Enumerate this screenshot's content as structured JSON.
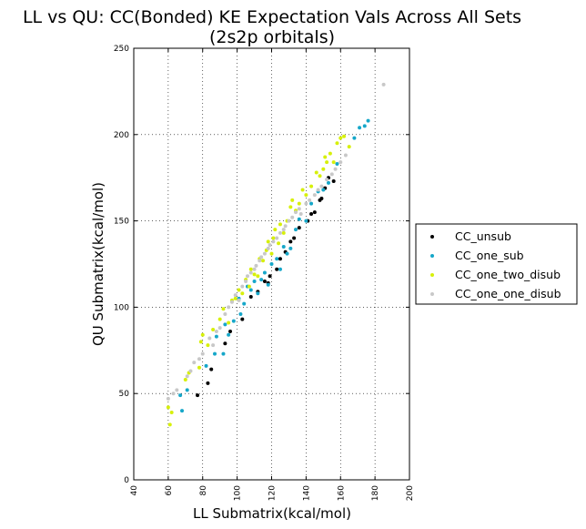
{
  "chart_data": {
    "type": "scatter",
    "title": "LL vs QU: CC(Bonded) KE Expectation Vals Across All Sets",
    "subtitle": "(2s2p orbitals)",
    "xlabel": "LL Submatrix(kcal/mol)",
    "ylabel": "QU Submatrix(kcal/mol)",
    "xlim": [
      40,
      200
    ],
    "ylim": [
      0,
      250
    ],
    "xticks": [
      "40",
      "60",
      "80",
      "100",
      "120",
      "140",
      "160",
      "180",
      "200"
    ],
    "yticks": [
      "0",
      "50",
      "100",
      "150",
      "200",
      "250"
    ],
    "grid": true,
    "legend_position": "right",
    "series": [
      {
        "name": "CC_unsub",
        "color": "#000000",
        "x": [
          77,
          83,
          85,
          93,
          96,
          103,
          108,
          112,
          116,
          118,
          119,
          123,
          125,
          128,
          131,
          133,
          136,
          141,
          143,
          145,
          148,
          149,
          151,
          153,
          156
        ],
        "y": [
          49,
          56,
          64,
          79,
          86,
          93,
          106,
          109,
          115,
          114,
          118,
          122,
          128,
          132,
          138,
          140,
          146,
          150,
          154,
          155,
          162,
          163,
          169,
          175,
          173
        ]
      },
      {
        "name": "CC_one_sub",
        "color": "#16a7c9",
        "x": [
          67,
          68,
          71,
          82,
          87,
          88,
          92,
          93,
          95,
          98,
          101,
          102,
          104,
          106,
          108,
          110,
          112,
          114,
          116,
          118,
          120,
          123,
          125,
          127,
          129,
          131,
          134,
          136,
          140,
          143,
          147,
          150,
          153,
          158,
          168,
          171,
          174,
          176
        ],
        "y": [
          49,
          40,
          52,
          66,
          73,
          83,
          73,
          90,
          84,
          92,
          105,
          96,
          102,
          112,
          110,
          115,
          108,
          116,
          120,
          113,
          125,
          128,
          122,
          135,
          131,
          134,
          145,
          151,
          150,
          160,
          167,
          168,
          172,
          183,
          198,
          204,
          205,
          208
        ]
      },
      {
        "name": "CC_one_two_disub",
        "color": "#d7f00a",
        "x": [
          60,
          61,
          62,
          70,
          72,
          78,
          79,
          80,
          83,
          86,
          90,
          92,
          95,
          97,
          99,
          101,
          103,
          105,
          107,
          108,
          110,
          112,
          113,
          115,
          117,
          118,
          120,
          121,
          122,
          124,
          125,
          127,
          129,
          131,
          132,
          134,
          136,
          138,
          140,
          143,
          146,
          148,
          150,
          151,
          152,
          154,
          156,
          158,
          160,
          162,
          165
        ],
        "y": [
          42,
          32,
          39,
          58,
          62,
          65,
          80,
          84,
          78,
          87,
          93,
          99,
          91,
          104,
          105,
          110,
          108,
          116,
          112,
          122,
          119,
          118,
          128,
          127,
          133,
          138,
          131,
          140,
          145,
          137,
          148,
          143,
          150,
          158,
          162,
          156,
          160,
          168,
          165,
          170,
          178,
          176,
          180,
          187,
          184,
          189,
          184,
          195,
          198,
          199,
          193
        ]
      },
      {
        "name": "CC_one_one_disub",
        "color": "#c8c8c8",
        "x": [
          60,
          63,
          65,
          71,
          73,
          75,
          78,
          80,
          84,
          86,
          88,
          90,
          93,
          95,
          97,
          99,
          101,
          103,
          105,
          106,
          108,
          110,
          111,
          113,
          114,
          116,
          118,
          119,
          121,
          123,
          125,
          127,
          128,
          130,
          132,
          134,
          136,
          137,
          140,
          142,
          145,
          147,
          149,
          152,
          155,
          157,
          160,
          163,
          185
        ],
        "y": [
          47,
          50,
          52,
          60,
          63,
          68,
          70,
          73,
          82,
          78,
          86,
          88,
          96,
          100,
          103,
          107,
          104,
          112,
          115,
          118,
          120,
          122,
          124,
          127,
          129,
          131,
          134,
          136,
          138,
          140,
          143,
          145,
          147,
          150,
          152,
          155,
          157,
          154,
          160,
          162,
          165,
          168,
          170,
          174,
          177,
          180,
          184,
          188,
          229
        ]
      }
    ]
  }
}
